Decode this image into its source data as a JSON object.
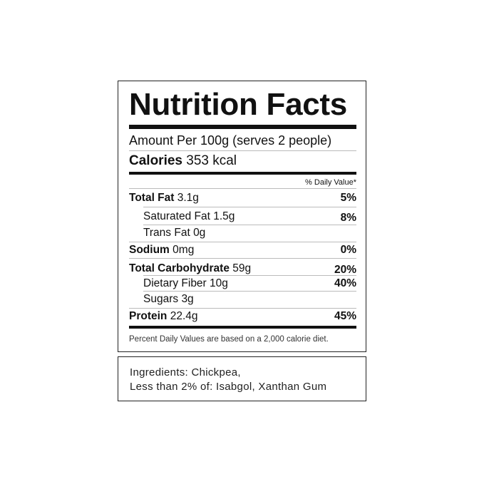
{
  "label": {
    "title": "Nutrition Facts",
    "serving": "Amount Per 100g (serves 2 people)",
    "calories_label": "Calories",
    "calories_value": "353 kcal",
    "daily_value_header": "% Daily Value*",
    "rows": [
      {
        "name": "Total Fat",
        "amount": "3.1g",
        "dv": "5%"
      },
      {
        "name": "Saturated Fat",
        "amount": "1.5g",
        "dv": "8%"
      },
      {
        "name": "Trans Fat",
        "amount": "0g",
        "dv": ""
      },
      {
        "name": "Sodium",
        "amount": "0mg",
        "dv": "0%"
      },
      {
        "name": "Total Carbohydrate",
        "amount": "59g",
        "dv": "20%"
      },
      {
        "name": "Dietary Fiber",
        "amount": "10g",
        "dv": "40%"
      },
      {
        "name": "Sugars",
        "amount": "3g",
        "dv": ""
      },
      {
        "name": "Protein",
        "amount": "22.4g",
        "dv": "45%"
      }
    ],
    "footnote": "Percent Daily Values are based on a 2,000 calorie diet."
  },
  "ingredients": {
    "line1": "Ingredients: Chickpea,",
    "line2": "Less than 2% of: Isabgol, Xanthan Gum"
  }
}
